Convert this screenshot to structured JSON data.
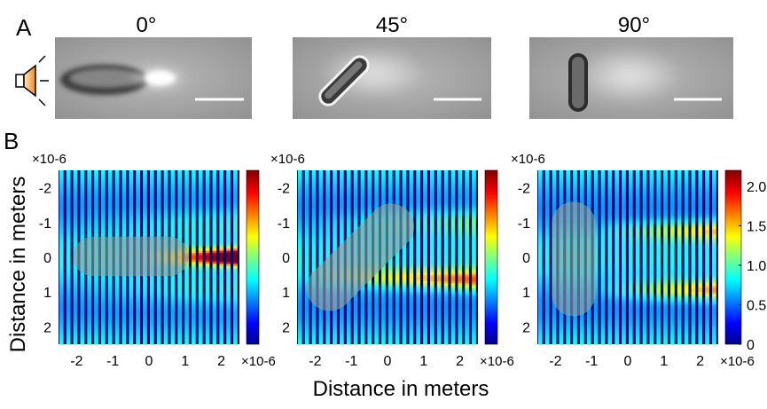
{
  "panel_a": {
    "label": "A",
    "angles": [
      "0°",
      "45°",
      "90°"
    ],
    "icon": "speaker-icon"
  },
  "panel_b": {
    "label": "B",
    "exponent_label": "×10-6",
    "xlabel": "Distance in meters",
    "ylabel": "Distance in meters",
    "x_ticks": [
      "-2",
      "-1",
      "0",
      "1",
      "2"
    ],
    "y_ticks": [
      "-2",
      "-1",
      "0",
      "1",
      "2"
    ],
    "colorbar_ticks": [
      "2.0",
      "1.5",
      "1.0",
      "0.5",
      "0"
    ]
  },
  "chart_data": [
    {
      "type": "heatmap",
      "title": "0°",
      "xlim": [
        -2.5,
        2.5
      ],
      "ylim": [
        -2.5,
        2.5
      ],
      "clim": [
        0,
        2.2
      ],
      "colormap": "jet"
    },
    {
      "type": "heatmap",
      "title": "45°",
      "xlim": [
        -2.5,
        2.5
      ],
      "ylim": [
        -2.5,
        2.5
      ],
      "clim": [
        0,
        2.2
      ],
      "colormap": "jet"
    },
    {
      "type": "heatmap",
      "title": "90°",
      "xlim": [
        -2.5,
        2.5
      ],
      "ylim": [
        -2.5,
        2.5
      ],
      "clim": [
        0,
        2.2
      ],
      "colormap": "jet"
    }
  ]
}
